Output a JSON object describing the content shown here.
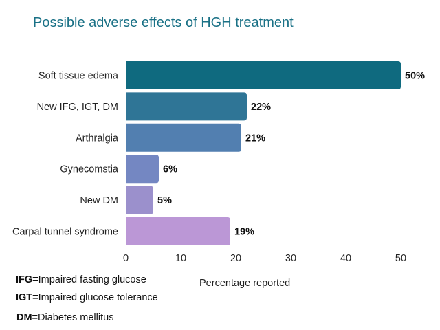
{
  "chart_data": {
    "type": "bar",
    "orientation": "horizontal",
    "title": "Possible adverse effects of HGH treatment",
    "xlabel": "Percentage reported",
    "ylabel": "",
    "xlim": [
      0,
      50
    ],
    "xticks": [
      0,
      10,
      20,
      30,
      40,
      50
    ],
    "grid": false,
    "categories": [
      "Soft tissue edema",
      "New IFG, IGT, DM",
      "Arthralgia",
      "Gynecomstia",
      "New DM",
      "Carpal tunnel syndrome"
    ],
    "values": [
      50,
      22,
      21,
      6,
      5,
      19
    ],
    "data_labels": [
      "50%",
      "22%",
      "21%",
      "6%",
      "5%",
      "19%"
    ],
    "colors": [
      "#0f6a7f",
      "#2f7596",
      "#527fb0",
      "#7487c2",
      "#9b90cc",
      "#bb97d6"
    ]
  },
  "notes": [
    {
      "abbr": "IFG=",
      "text": "Impaired fasting glucose"
    },
    {
      "abbr": "IGT=",
      "text": "Impaired glucose tolerance"
    },
    {
      "abbr": "DM=",
      "text": "Diabetes mellitus"
    }
  ]
}
